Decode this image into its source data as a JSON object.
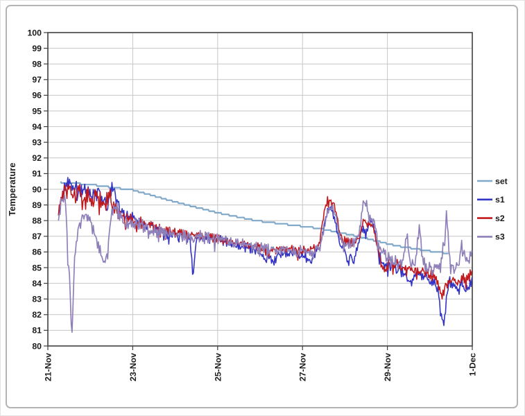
{
  "chart_data": {
    "type": "line",
    "title": "",
    "ylabel": "Temperature",
    "xlabel": "",
    "ylim": [
      80,
      100
    ],
    "ytick_step": 1,
    "xlim_days": [
      0,
      10
    ],
    "xticks": [
      {
        "pos": 0,
        "label": "21-Nov"
      },
      {
        "pos": 2,
        "label": "23-Nov"
      },
      {
        "pos": 4,
        "label": "25-Nov"
      },
      {
        "pos": 6,
        "label": "27-Nov"
      },
      {
        "pos": 8,
        "label": "29-Nov"
      },
      {
        "pos": 10,
        "label": "1-Dec"
      }
    ],
    "grid": true,
    "legend_position": "right",
    "colors": {
      "grid": "#c6c6c6",
      "axis": "#3f3f3f",
      "text": "#1b1b1b",
      "background": "#ffffff"
    },
    "sample_step": 0.02,
    "series": [
      {
        "name": "set",
        "color": "#7FA8C9",
        "width": 2.2,
        "noise": 0,
        "quantize": 0.1,
        "seed": 1,
        "anchors": [
          [
            0.3,
            90.45
          ],
          [
            1.0,
            90.3
          ],
          [
            2.0,
            89.95
          ],
          [
            3.0,
            89.2
          ],
          [
            4.0,
            88.5
          ],
          [
            4.9,
            88.0
          ],
          [
            6.4,
            87.5
          ],
          [
            7.3,
            87.0
          ],
          [
            8.2,
            86.4
          ],
          [
            9.0,
            86.05
          ],
          [
            9.45,
            85.9
          ]
        ]
      },
      {
        "name": "s1",
        "color": "#3333C4",
        "width": 1.6,
        "seed": 11,
        "noise": [
          [
            0.25,
            0.35
          ],
          [
            1.6,
            0.4
          ],
          [
            1.9,
            0.28
          ],
          [
            2.5,
            0.25
          ],
          [
            6.3,
            0.25
          ],
          [
            6.9,
            0.18
          ],
          [
            7.3,
            0.22
          ],
          [
            8.0,
            0.3
          ],
          [
            10,
            0.33
          ]
        ],
        "anchors": [
          [
            0.25,
            88.6
          ],
          [
            0.32,
            89.2
          ],
          [
            0.4,
            90.1
          ],
          [
            0.5,
            90.45
          ],
          [
            0.58,
            89.9
          ],
          [
            0.68,
            90.2
          ],
          [
            0.78,
            89.9
          ],
          [
            0.88,
            90.1
          ],
          [
            0.98,
            89.8
          ],
          [
            1.08,
            89.6
          ],
          [
            1.18,
            89.9
          ],
          [
            1.28,
            89.5
          ],
          [
            1.38,
            89.2
          ],
          [
            1.48,
            89.9
          ],
          [
            1.55,
            90.1
          ],
          [
            1.62,
            89.3
          ],
          [
            1.72,
            88.5
          ],
          [
            1.82,
            88.2
          ],
          [
            1.92,
            88.4
          ],
          [
            2.02,
            88.1
          ],
          [
            2.12,
            88.0
          ],
          [
            2.25,
            87.8
          ],
          [
            2.45,
            87.6
          ],
          [
            2.65,
            87.4
          ],
          [
            2.85,
            87.2
          ],
          [
            3.05,
            87.1
          ],
          [
            3.2,
            87.1
          ],
          [
            3.35,
            86.7
          ],
          [
            3.42,
            84.4
          ],
          [
            3.5,
            86.8
          ],
          [
            3.65,
            86.9
          ],
          [
            3.85,
            86.8
          ],
          [
            4.05,
            86.8
          ],
          [
            4.25,
            86.6
          ],
          [
            4.45,
            86.4
          ],
          [
            4.65,
            86.3
          ],
          [
            4.85,
            86.2
          ],
          [
            5.0,
            86.0
          ],
          [
            5.1,
            85.5
          ],
          [
            5.2,
            85.9
          ],
          [
            5.32,
            85.4
          ],
          [
            5.45,
            85.9
          ],
          [
            5.65,
            86.0
          ],
          [
            5.85,
            85.9
          ],
          [
            6.05,
            85.8
          ],
          [
            6.18,
            85.4
          ],
          [
            6.3,
            85.9
          ],
          [
            6.42,
            86.3
          ],
          [
            6.52,
            88.0
          ],
          [
            6.6,
            88.7
          ],
          [
            6.7,
            88.7
          ],
          [
            6.78,
            87.8
          ],
          [
            6.88,
            86.5
          ],
          [
            6.98,
            86.2
          ],
          [
            7.08,
            85.2
          ],
          [
            7.14,
            85.9
          ],
          [
            7.2,
            85.3
          ],
          [
            7.3,
            86.3
          ],
          [
            7.4,
            87.6
          ],
          [
            7.5,
            87.1
          ],
          [
            7.6,
            88.2
          ],
          [
            7.7,
            87.5
          ],
          [
            7.8,
            85.8
          ],
          [
            7.92,
            85.1
          ],
          [
            8.05,
            85.2
          ],
          [
            8.2,
            85.0
          ],
          [
            8.4,
            84.7
          ],
          [
            8.55,
            83.9
          ],
          [
            8.7,
            84.6
          ],
          [
            8.9,
            84.4
          ],
          [
            9.05,
            84.0
          ],
          [
            9.15,
            84.2
          ],
          [
            9.25,
            82.3
          ],
          [
            9.33,
            81.4
          ],
          [
            9.45,
            84.2
          ],
          [
            9.55,
            83.8
          ],
          [
            9.65,
            83.4
          ],
          [
            9.75,
            84.1
          ],
          [
            9.85,
            83.4
          ],
          [
            9.95,
            84.0
          ],
          [
            10,
            84.3
          ]
        ]
      },
      {
        "name": "s2",
        "color": "#C01A1F",
        "width": 1.6,
        "seed": 23,
        "noise": [
          [
            0.25,
            0.4
          ],
          [
            0.7,
            0.65
          ],
          [
            1.5,
            0.65
          ],
          [
            1.8,
            0.35
          ],
          [
            2.5,
            0.25
          ],
          [
            6.3,
            0.22
          ],
          [
            6.9,
            0.2
          ],
          [
            8.0,
            0.28
          ],
          [
            10,
            0.3
          ]
        ],
        "anchors": [
          [
            0.25,
            88.5
          ],
          [
            0.33,
            89.2
          ],
          [
            0.42,
            90.0
          ],
          [
            0.52,
            90.1
          ],
          [
            0.62,
            89.4
          ],
          [
            0.72,
            89.8
          ],
          [
            0.82,
            89.2
          ],
          [
            0.92,
            89.6
          ],
          [
            1.02,
            89.2
          ],
          [
            1.12,
            89.5
          ],
          [
            1.22,
            89.2
          ],
          [
            1.32,
            88.9
          ],
          [
            1.42,
            89.3
          ],
          [
            1.52,
            89.2
          ],
          [
            1.62,
            88.6
          ],
          [
            1.72,
            88.3
          ],
          [
            1.82,
            88.1
          ],
          [
            1.92,
            88.3
          ],
          [
            2.02,
            88.0
          ],
          [
            2.15,
            87.9
          ],
          [
            2.3,
            87.8
          ],
          [
            2.5,
            87.6
          ],
          [
            2.7,
            87.4
          ],
          [
            2.9,
            87.3
          ],
          [
            3.1,
            87.2
          ],
          [
            3.3,
            87.1
          ],
          [
            3.5,
            87.0
          ],
          [
            3.7,
            87.0
          ],
          [
            3.9,
            86.9
          ],
          [
            4.1,
            86.8
          ],
          [
            4.3,
            86.7
          ],
          [
            4.5,
            86.5
          ],
          [
            4.7,
            86.4
          ],
          [
            4.9,
            86.4
          ],
          [
            5.1,
            86.2
          ],
          [
            5.3,
            86.1
          ],
          [
            5.5,
            86.2
          ],
          [
            5.7,
            86.2
          ],
          [
            5.9,
            86.1
          ],
          [
            6.1,
            86.1
          ],
          [
            6.25,
            86.2
          ],
          [
            6.4,
            86.6
          ],
          [
            6.5,
            88.4
          ],
          [
            6.6,
            89.4
          ],
          [
            6.7,
            89.3
          ],
          [
            6.8,
            88.5
          ],
          [
            6.88,
            87.2
          ],
          [
            6.95,
            86.8
          ],
          [
            7.05,
            86.7
          ],
          [
            7.15,
            86.6
          ],
          [
            7.25,
            86.8
          ],
          [
            7.35,
            87.0
          ],
          [
            7.45,
            88.2
          ],
          [
            7.55,
            87.7
          ],
          [
            7.65,
            87.9
          ],
          [
            7.75,
            86.5
          ],
          [
            7.85,
            85.3
          ],
          [
            7.95,
            84.9
          ],
          [
            8.05,
            85.4
          ],
          [
            8.2,
            85.2
          ],
          [
            8.4,
            85.0
          ],
          [
            8.6,
            84.9
          ],
          [
            8.8,
            84.8
          ],
          [
            9.0,
            84.6
          ],
          [
            9.15,
            84.3
          ],
          [
            9.28,
            83.0
          ],
          [
            9.38,
            84.0
          ],
          [
            9.5,
            84.2
          ],
          [
            9.65,
            84.0
          ],
          [
            9.8,
            84.3
          ],
          [
            9.95,
            84.6
          ],
          [
            10,
            84.7
          ]
        ]
      },
      {
        "name": "s3",
        "color": "#8F80B9",
        "width": 1.7,
        "seed": 37,
        "noise": [
          [
            0.25,
            0.35
          ],
          [
            0.7,
            0.3
          ],
          [
            1.6,
            0.3
          ],
          [
            2.5,
            0.35
          ],
          [
            6.3,
            0.25
          ],
          [
            7.3,
            0.25
          ],
          [
            8.0,
            0.35
          ],
          [
            10,
            0.4
          ]
        ],
        "anchors": [
          [
            0.25,
            88.4
          ],
          [
            0.33,
            89.3
          ],
          [
            0.4,
            89.8
          ],
          [
            0.44,
            88.0
          ],
          [
            0.47,
            85.8
          ],
          [
            0.5,
            85.0
          ],
          [
            0.53,
            83.0
          ],
          [
            0.56,
            80.0
          ],
          [
            0.59,
            82.5
          ],
          [
            0.63,
            85.5
          ],
          [
            0.68,
            86.8
          ],
          [
            0.74,
            87.8
          ],
          [
            0.82,
            88.3
          ],
          [
            0.9,
            88.4
          ],
          [
            0.98,
            88.1
          ],
          [
            1.06,
            87.4
          ],
          [
            1.14,
            86.8
          ],
          [
            1.22,
            86.2
          ],
          [
            1.3,
            85.5
          ],
          [
            1.35,
            85.2
          ],
          [
            1.42,
            86.6
          ],
          [
            1.5,
            88.3
          ],
          [
            1.57,
            89.0
          ],
          [
            1.64,
            88.8
          ],
          [
            1.72,
            88.1
          ],
          [
            1.8,
            87.7
          ],
          [
            1.9,
            87.9
          ],
          [
            2.0,
            87.8
          ],
          [
            2.1,
            87.9
          ],
          [
            2.2,
            87.7
          ],
          [
            2.35,
            87.5
          ],
          [
            2.55,
            87.3
          ],
          [
            2.75,
            87.2
          ],
          [
            2.95,
            87.1
          ],
          [
            3.15,
            87.1
          ],
          [
            3.35,
            87.0
          ],
          [
            3.55,
            87.0
          ],
          [
            3.75,
            86.9
          ],
          [
            3.95,
            86.9
          ],
          [
            4.15,
            86.8
          ],
          [
            4.35,
            86.6
          ],
          [
            4.55,
            86.5
          ],
          [
            4.75,
            86.4
          ],
          [
            4.95,
            86.3
          ],
          [
            5.15,
            86.2
          ],
          [
            5.35,
            86.1
          ],
          [
            5.55,
            86.2
          ],
          [
            5.75,
            86.1
          ],
          [
            5.95,
            86.1
          ],
          [
            6.15,
            86.0
          ],
          [
            6.3,
            86.1
          ],
          [
            6.42,
            86.4
          ],
          [
            6.52,
            87.8
          ],
          [
            6.62,
            88.8
          ],
          [
            6.72,
            88.9
          ],
          [
            6.8,
            88.0
          ],
          [
            6.9,
            86.8
          ],
          [
            7.0,
            86.4
          ],
          [
            7.1,
            86.5
          ],
          [
            7.2,
            86.6
          ],
          [
            7.32,
            87.0
          ],
          [
            7.42,
            89.0
          ],
          [
            7.5,
            89.2
          ],
          [
            7.58,
            88.0
          ],
          [
            7.66,
            88.3
          ],
          [
            7.74,
            87.2
          ],
          [
            7.84,
            86.0
          ],
          [
            7.95,
            85.8
          ],
          [
            8.08,
            85.5
          ],
          [
            8.22,
            85.3
          ],
          [
            8.35,
            85.2
          ],
          [
            8.45,
            87.1
          ],
          [
            8.55,
            85.2
          ],
          [
            8.65,
            85.1
          ],
          [
            8.75,
            87.5
          ],
          [
            8.85,
            85.2
          ],
          [
            8.95,
            85.0
          ],
          [
            9.05,
            84.9
          ],
          [
            9.15,
            84.9
          ],
          [
            9.25,
            85.0
          ],
          [
            9.33,
            86.5
          ],
          [
            9.4,
            88.5
          ],
          [
            9.48,
            85.2
          ],
          [
            9.58,
            84.8
          ],
          [
            9.68,
            85.3
          ],
          [
            9.76,
            87.0
          ],
          [
            9.84,
            85.5
          ],
          [
            9.92,
            85.6
          ],
          [
            10,
            85.9
          ]
        ]
      }
    ]
  }
}
